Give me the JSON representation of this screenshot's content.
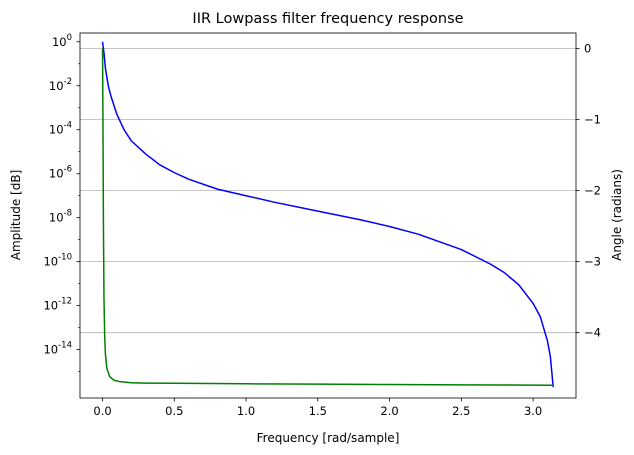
{
  "chart_data": {
    "type": "line",
    "title": "IIR Lowpass filter frequency response",
    "xlabel": "Frequency [rad/sample]",
    "ylabel_left": "Amplitude [dB]",
    "ylabel_right": "Angle (radians)",
    "xlim": [
      -0.157,
      3.299
    ],
    "ylim_left_log10": [
      -16.2,
      0.4
    ],
    "ylim_right": [
      -4.92,
      0.22
    ],
    "x_ticks": [
      0.0,
      0.5,
      1.0,
      1.5,
      2.0,
      2.5,
      3.0
    ],
    "x_tick_labels": [
      "0.0",
      "0.5",
      "1.0",
      "1.5",
      "2.0",
      "2.5",
      "3.0"
    ],
    "left_ticks_exp": [
      0,
      -2,
      -4,
      -6,
      -8,
      -10,
      -12,
      -14
    ],
    "left_tick_labels": [
      "0",
      "-2",
      "-4",
      "-6",
      "-8",
      "-10",
      "-12",
      "-14"
    ],
    "right_ticks": [
      0,
      -1,
      -2,
      -3,
      -4
    ],
    "right_tick_labels": [
      "0",
      "−1",
      "−2",
      "−3",
      "−4"
    ],
    "grid": "right-axis horizontal",
    "colors": {
      "amplitude": "#0000ff",
      "angle": "#008000",
      "grid": "#b0b0b0",
      "left_label": "#0000ff",
      "right_label": "#008000"
    },
    "series": [
      {
        "axis": "left",
        "scale": "log",
        "x": [
          0.0,
          0.01,
          0.02,
          0.04,
          0.06,
          0.1,
          0.15,
          0.2,
          0.3,
          0.4,
          0.5,
          0.6,
          0.8,
          1.0,
          1.2,
          1.5,
          1.8,
          2.0,
          2.2,
          2.5,
          2.7,
          2.8,
          2.9,
          3.0,
          3.05,
          3.1,
          3.12,
          3.13,
          3.14
        ],
        "log10_y": [
          0.0,
          -0.5,
          -1.2,
          -2.0,
          -2.5,
          -3.3,
          -4.0,
          -4.5,
          -5.1,
          -5.6,
          -5.95,
          -6.25,
          -6.7,
          -7.0,
          -7.3,
          -7.7,
          -8.1,
          -8.4,
          -8.75,
          -9.45,
          -10.1,
          -10.5,
          -11.05,
          -11.9,
          -12.5,
          -13.6,
          -14.3,
          -15.0,
          -15.7
        ]
      },
      {
        "axis": "right",
        "x": [
          0.0,
          0.003,
          0.006,
          0.01,
          0.015,
          0.02,
          0.03,
          0.05,
          0.08,
          0.12,
          0.2,
          0.3,
          0.5,
          1.0,
          1.5,
          2.0,
          2.5,
          3.0,
          3.14
        ],
        "y": [
          0.0,
          -1.0,
          -2.4,
          -3.5,
          -4.05,
          -4.3,
          -4.5,
          -4.62,
          -4.67,
          -4.69,
          -4.705,
          -4.71,
          -4.713,
          -4.72,
          -4.725,
          -4.73,
          -4.735,
          -4.738,
          -4.74
        ]
      }
    ]
  }
}
